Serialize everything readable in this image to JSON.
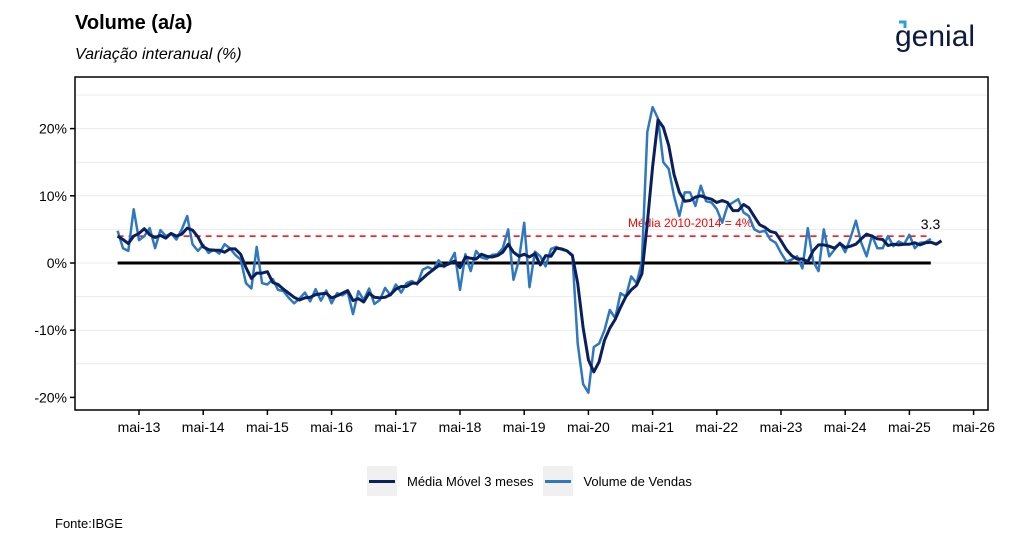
{
  "header": {
    "title": "Volume (a/a)",
    "subtitle": "Variação interanual (%)",
    "brand": "genial"
  },
  "footer": {
    "source": "Fonte:IBGE"
  },
  "colors": {
    "moving_average": "#0a1f5c",
    "sales_volume": "#2f78be",
    "reference": "#ff0000",
    "zero_line": "#000000",
    "brand_text": "#0d1b3e",
    "brand_accent": "#2a9fd8"
  },
  "chart_data": {
    "type": "line",
    "title": "Volume (a/a)",
    "subtitle": "Variação interanual (%)",
    "xlabel": "",
    "ylabel": "",
    "ylim": [
      -20,
      27
    ],
    "yticks": [
      -20,
      -10,
      0,
      10,
      20
    ],
    "ytick_labels": [
      "-20%",
      "-10%",
      "0%",
      "10%",
      "20%"
    ],
    "xticks": [
      "mai-13",
      "mai-14",
      "mai-15",
      "mai-16",
      "mai-17",
      "mai-18",
      "mai-19",
      "mai-20",
      "mai-21",
      "mai-22",
      "mai-23",
      "mai-24",
      "mai-25",
      "mai-26"
    ],
    "x_start": "jan-13",
    "frequency": "monthly",
    "grid": "horizontal-minor",
    "legend_position": "bottom",
    "reference_line": {
      "value": 4,
      "label": "Média 2010-2014 = 4%"
    },
    "end_label": "3.3",
    "series": [
      {
        "name": "Volume de Vendas",
        "values": [
          4.8,
          2.2,
          1.8,
          8.0,
          3.4,
          4.0,
          5.2,
          2.2,
          4.9,
          4.0,
          4.4,
          3.5,
          5.0,
          7.0,
          2.8,
          1.8,
          2.7,
          1.5,
          2.0,
          1.4,
          2.8,
          2.2,
          1.2,
          0.5,
          -3.0,
          -3.8,
          2.4,
          -3.0,
          -3.2,
          -2.4,
          -4.0,
          -4.2,
          -5.2,
          -6.0,
          -5.3,
          -4.4,
          -5.7,
          -3.9,
          -5.6,
          -4.1,
          -6.0,
          -4.5,
          -4.8,
          -4.3,
          -7.6,
          -4.2,
          -5.5,
          -3.8,
          -6.1,
          -5.5,
          -3.7,
          -4.8,
          -3.2,
          -4.4,
          -3.0,
          -2.7,
          -3.2,
          -1.0,
          -0.6,
          -1.0,
          0.4,
          -0.6,
          0.0,
          1.5,
          -4.0,
          1.3,
          -1.2,
          1.8,
          0.8,
          0.6,
          1.2,
          1.3,
          2.2,
          5.0,
          -2.5,
          0.4,
          6.0,
          -3.6,
          1.7,
          1.0,
          -0.5,
          2.1,
          2.4,
          2.0,
          1.8,
          1.2,
          -12.0,
          -18.0,
          -19.3,
          -12.5,
          -12.0,
          -10.0,
          -7.0,
          -8.2,
          -4.5,
          -5.0,
          -2.0,
          -3.0,
          0.2,
          19.5,
          23.2,
          21.5,
          15.0,
          14.0,
          10.0,
          7.0,
          10.5,
          10.5,
          8.5,
          11.5,
          9.2,
          9.0,
          8.0,
          6.0,
          8.5,
          9.0,
          9.5,
          7.5,
          7.0,
          5.0,
          4.6,
          4.8,
          3.5,
          3.0,
          1.5,
          0.2,
          0.5,
          1.0,
          -0.8,
          5.2,
          0.3,
          -1.2,
          5.0,
          1.0,
          2.0,
          3.0,
          1.6,
          3.8,
          6.3,
          3.0,
          1.0,
          4.1,
          2.2,
          2.2,
          4.0,
          2.5,
          3.2,
          2.8,
          4.2,
          2.2,
          3.0,
          3.1,
          3.6
        ]
      },
      {
        "name": "Média Móvel 3 meses",
        "values": [
          4.0,
          3.5,
          2.9,
          4.0,
          4.4,
          5.1,
          4.2,
          3.8,
          4.1,
          3.7,
          4.4,
          4.0,
          4.3,
          5.2,
          4.9,
          3.9,
          2.4,
          2.0,
          1.9,
          1.9,
          1.6,
          2.1,
          2.1,
          1.3,
          -0.7,
          -2.3,
          -1.5,
          -1.5,
          -1.3,
          -2.9,
          -3.2,
          -3.9,
          -4.5,
          -5.1,
          -5.5,
          -5.2,
          -5.1,
          -4.7,
          -4.6,
          -4.5,
          -5.2,
          -4.9,
          -4.5,
          -4.1,
          -5.6,
          -5.3,
          -5.8,
          -4.5,
          -5.1,
          -5.2,
          -5.1,
          -4.7,
          -3.9,
          -3.5,
          -3.5,
          -3.0,
          -3.0,
          -2.3,
          -1.6,
          -1.0,
          -0.4,
          -0.4,
          -0.1,
          0.3,
          -0.7,
          0.9,
          0.7,
          0.6,
          1.3,
          1.0,
          0.9,
          1.1,
          1.6,
          2.8,
          1.6,
          1.0,
          1.3,
          0.9,
          1.4,
          -0.3,
          1.1,
          1.0,
          2.2,
          2.1,
          1.8,
          1.1,
          -3.0,
          -9.6,
          -14.4,
          -16.2,
          -14.7,
          -11.5,
          -9.7,
          -8.4,
          -6.6,
          -5.0,
          -4.0,
          -3.3,
          -1.6,
          5.9,
          14.3,
          21.3,
          20.2,
          17.5,
          13.2,
          10.5,
          9.2,
          9.3,
          9.8,
          10.0,
          9.7,
          9.5,
          9.0,
          9.3,
          9.0,
          7.8,
          7.8,
          8.7,
          8.2,
          6.9,
          5.7,
          5.3,
          4.7,
          4.5,
          3.3,
          2.0,
          1.1,
          0.6,
          0.6,
          0.2,
          1.8,
          2.7,
          2.7,
          2.5,
          2.2,
          2.9,
          2.3,
          2.5,
          2.8,
          3.6,
          4.3,
          4.0,
          3.6,
          3.5,
          2.6,
          2.8,
          2.7,
          2.8,
          2.8,
          3.0,
          2.7,
          3.0,
          3.1,
          2.8,
          3.3
        ]
      }
    ]
  }
}
